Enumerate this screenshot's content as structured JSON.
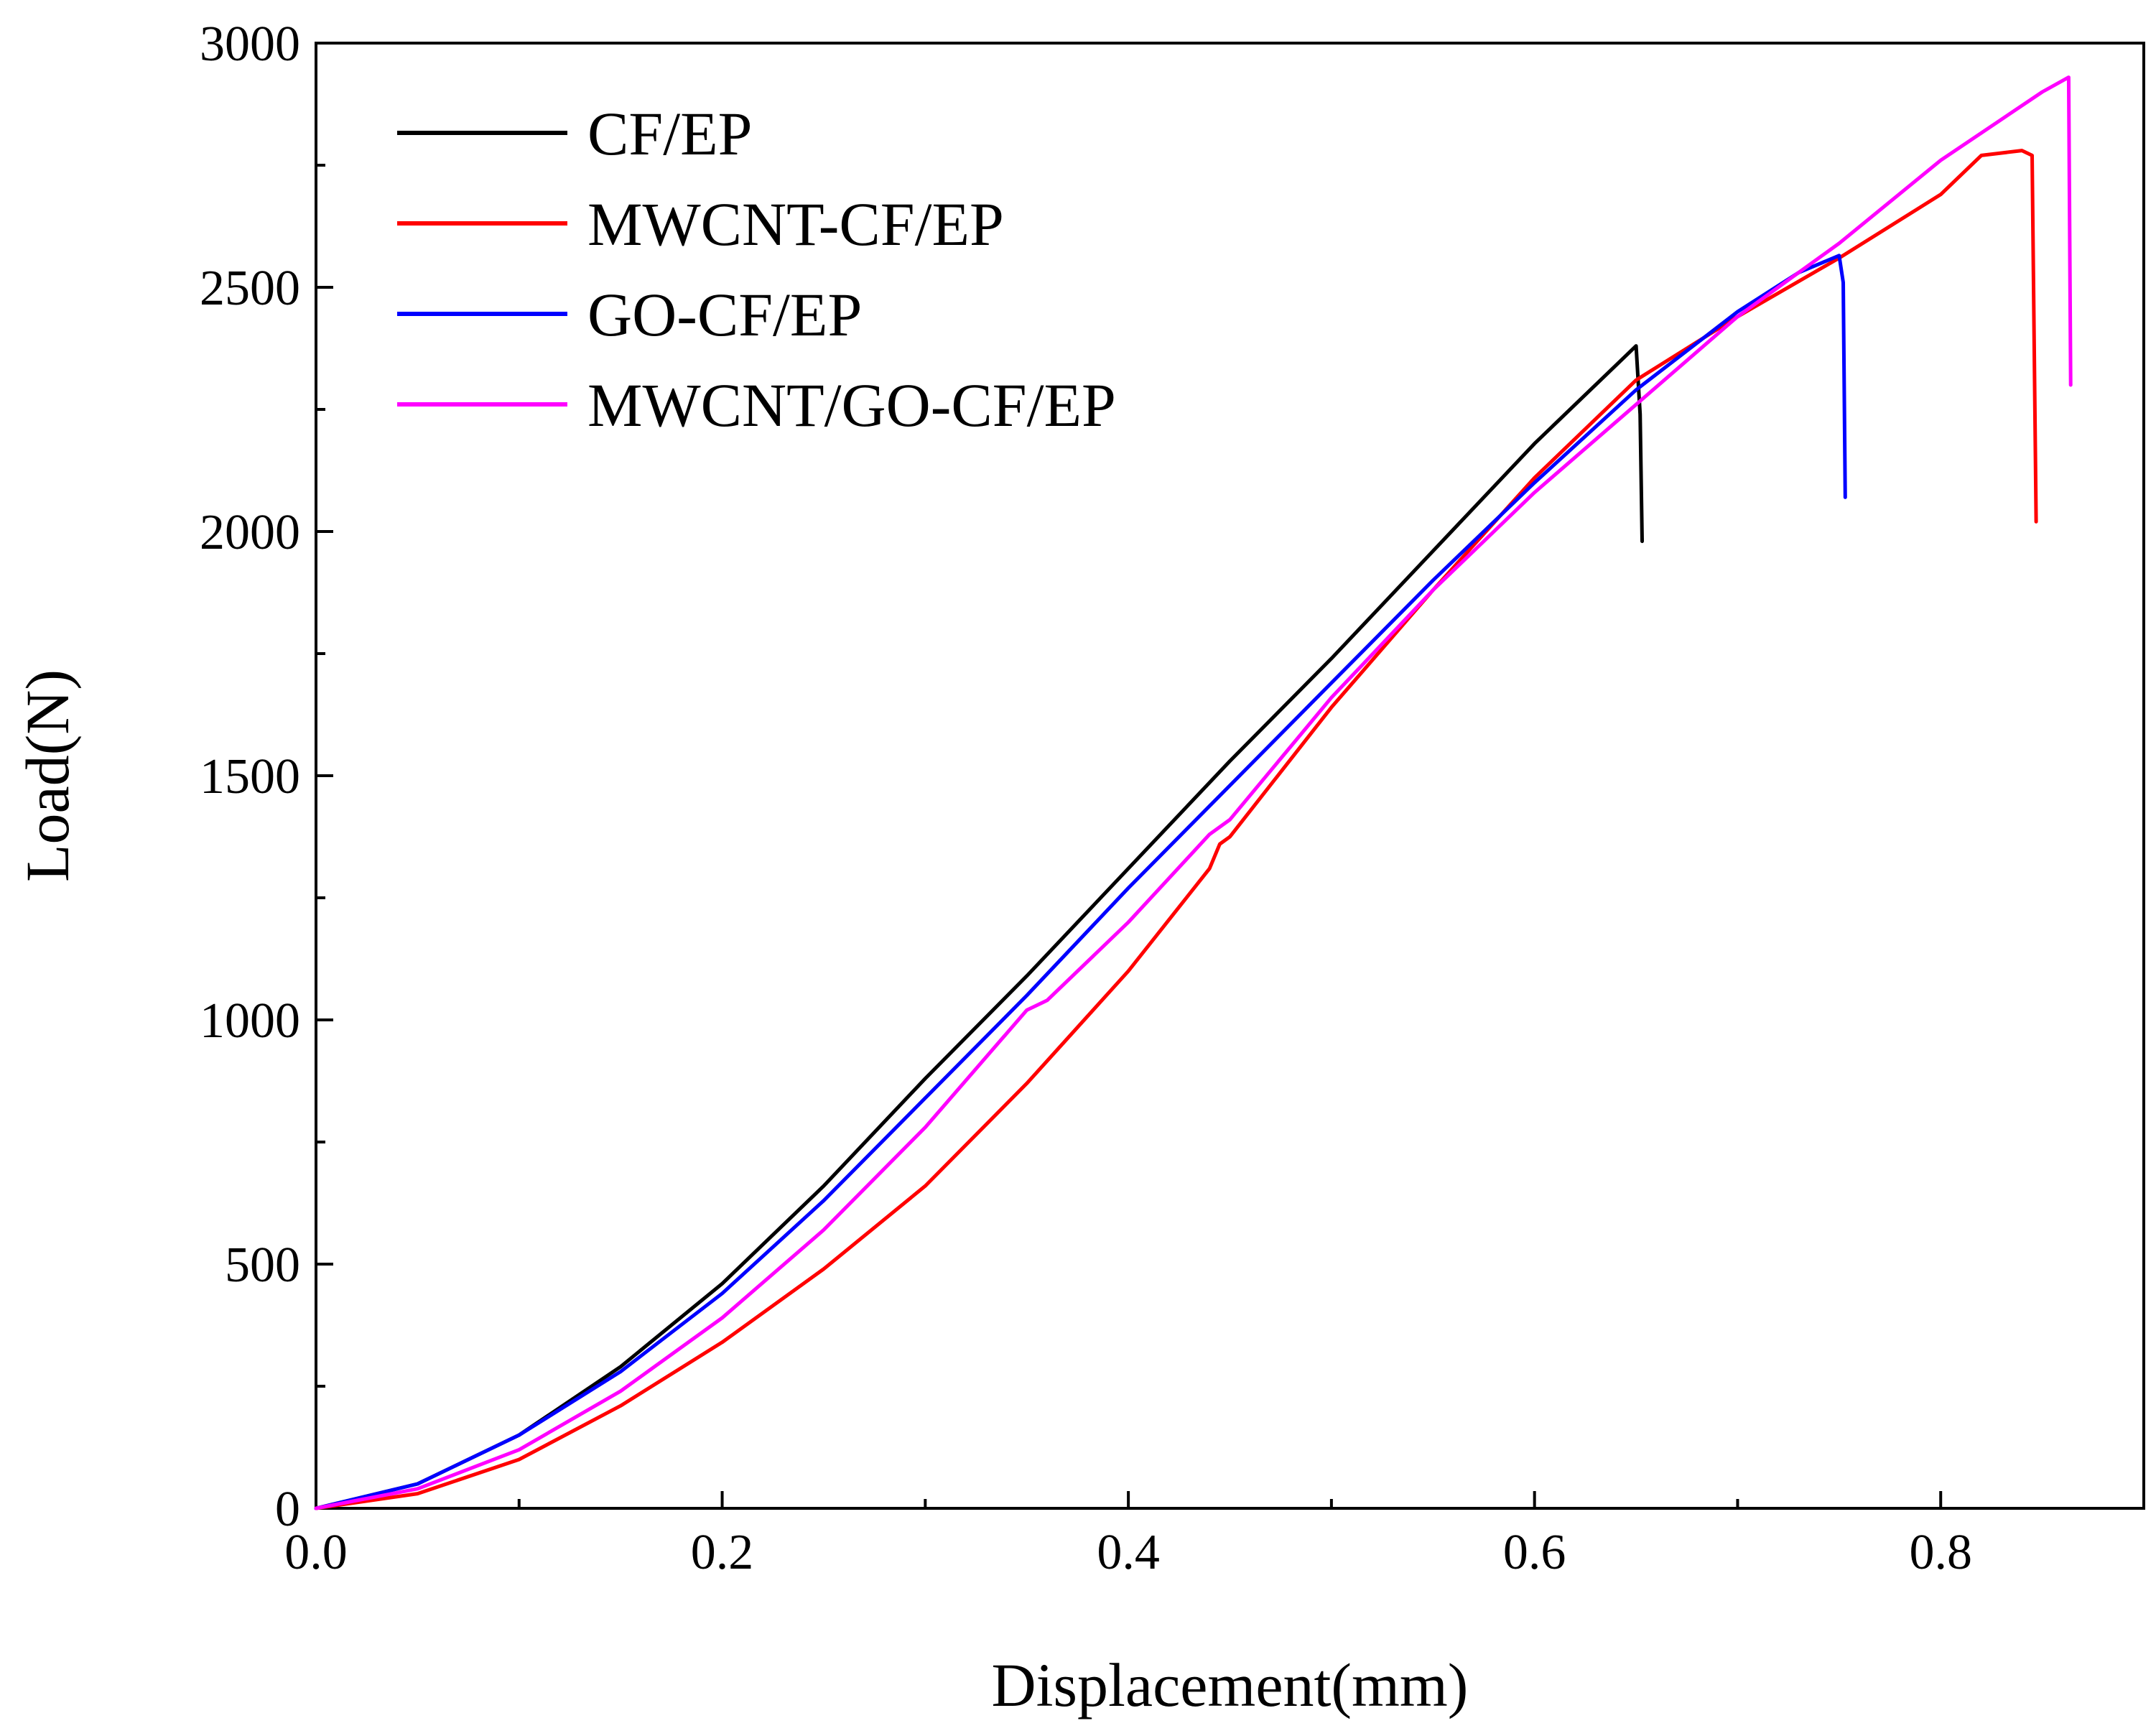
{
  "chart_data": {
    "type": "line",
    "xlabel": "Displacement(mm)",
    "ylabel": "Load(N)",
    "xlim": [
      0,
      0.9
    ],
    "ylim": [
      0,
      3000
    ],
    "x_ticks": [
      0.0,
      0.2,
      0.4,
      0.6,
      0.8
    ],
    "x_tick_labels": [
      "0.0",
      "0.2",
      "0.4",
      "0.6",
      "0.8"
    ],
    "y_ticks": [
      0,
      500,
      1000,
      1500,
      2000,
      2500,
      3000
    ],
    "y_tick_labels": [
      "0",
      "500",
      "1000",
      "1500",
      "2000",
      "2500",
      "3000"
    ],
    "grid": false,
    "legend_position": "top-left",
    "series": [
      {
        "name": "CF/EP",
        "color": "#000000",
        "points": [
          [
            0,
            0
          ],
          [
            0.05,
            50
          ],
          [
            0.1,
            150
          ],
          [
            0.15,
            290
          ],
          [
            0.2,
            460
          ],
          [
            0.25,
            660
          ],
          [
            0.3,
            880
          ],
          [
            0.35,
            1090
          ],
          [
            0.4,
            1310
          ],
          [
            0.45,
            1530
          ],
          [
            0.5,
            1740
          ],
          [
            0.55,
            1960
          ],
          [
            0.6,
            2180
          ],
          [
            0.65,
            2380
          ],
          [
            0.652,
            2240
          ],
          [
            0.653,
            1980
          ]
        ]
      },
      {
        "name": "MWCNT-CF/EP",
        "color": "#ff0000",
        "points": [
          [
            0,
            0
          ],
          [
            0.05,
            30
          ],
          [
            0.1,
            100
          ],
          [
            0.15,
            210
          ],
          [
            0.2,
            340
          ],
          [
            0.25,
            490
          ],
          [
            0.3,
            660
          ],
          [
            0.35,
            870
          ],
          [
            0.4,
            1100
          ],
          [
            0.44,
            1310
          ],
          [
            0.445,
            1360
          ],
          [
            0.45,
            1375
          ],
          [
            0.5,
            1640
          ],
          [
            0.55,
            1880
          ],
          [
            0.6,
            2110
          ],
          [
            0.65,
            2310
          ],
          [
            0.7,
            2440
          ],
          [
            0.75,
            2560
          ],
          [
            0.8,
            2690
          ],
          [
            0.82,
            2770
          ],
          [
            0.83,
            2775
          ],
          [
            0.84,
            2780
          ],
          [
            0.845,
            2770
          ],
          [
            0.847,
            2020
          ]
        ]
      },
      {
        "name": "GO-CF/EP",
        "color": "#0000ff",
        "points": [
          [
            0,
            0
          ],
          [
            0.05,
            50
          ],
          [
            0.1,
            150
          ],
          [
            0.15,
            280
          ],
          [
            0.2,
            440
          ],
          [
            0.25,
            630
          ],
          [
            0.3,
            840
          ],
          [
            0.35,
            1050
          ],
          [
            0.4,
            1270
          ],
          [
            0.45,
            1480
          ],
          [
            0.5,
            1690
          ],
          [
            0.55,
            1900
          ],
          [
            0.6,
            2100
          ],
          [
            0.65,
            2290
          ],
          [
            0.7,
            2450
          ],
          [
            0.73,
            2530
          ],
          [
            0.75,
            2565
          ],
          [
            0.752,
            2510
          ],
          [
            0.753,
            2070
          ]
        ]
      },
      {
        "name": "MWCNT/GO-CF/EP",
        "color": "#ff00ff",
        "points": [
          [
            0,
            0
          ],
          [
            0.05,
            40
          ],
          [
            0.1,
            120
          ],
          [
            0.15,
            240
          ],
          [
            0.2,
            390
          ],
          [
            0.25,
            570
          ],
          [
            0.3,
            780
          ],
          [
            0.35,
            1020
          ],
          [
            0.36,
            1040
          ],
          [
            0.4,
            1200
          ],
          [
            0.44,
            1380
          ],
          [
            0.45,
            1410
          ],
          [
            0.5,
            1660
          ],
          [
            0.55,
            1880
          ],
          [
            0.6,
            2080
          ],
          [
            0.65,
            2260
          ],
          [
            0.7,
            2440
          ],
          [
            0.75,
            2590
          ],
          [
            0.8,
            2760
          ],
          [
            0.85,
            2900
          ],
          [
            0.863,
            2930
          ],
          [
            0.864,
            2300
          ]
        ]
      }
    ]
  }
}
